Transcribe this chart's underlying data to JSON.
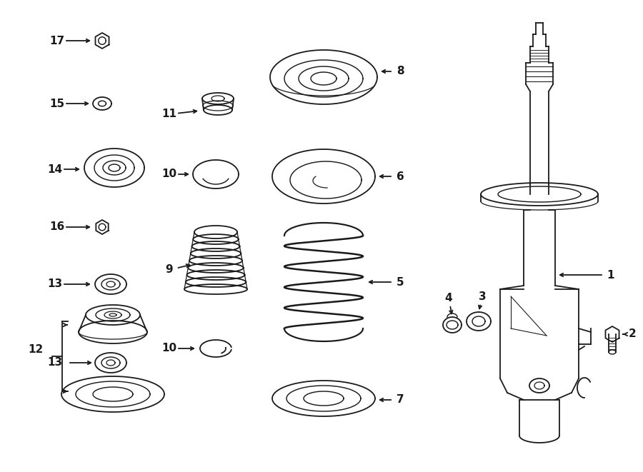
{
  "bg_color": "#ffffff",
  "line_color": "#1a1a1a",
  "line_width": 1.3,
  "fig_width": 9.0,
  "fig_height": 6.61,
  "dpi": 100
}
